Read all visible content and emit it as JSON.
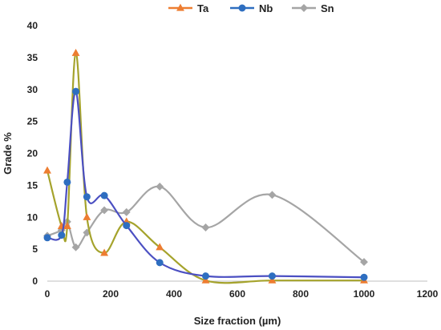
{
  "chart_data": {
    "type": "line",
    "xlabel": "Size fraction (µm)",
    "ylabel": "Grade %",
    "xlim": [
      0,
      1200
    ],
    "ylim": [
      0,
      40
    ],
    "x_ticks": [
      0,
      200,
      400,
      600,
      800,
      1000,
      1200
    ],
    "y_ticks": [
      0,
      5,
      10,
      15,
      20,
      25,
      30,
      35,
      40
    ],
    "grid": false,
    "legend_position": "top",
    "smooth": true,
    "series": [
      {
        "name": "Ta",
        "color": "#ED7D31",
        "line_color": "#A5A32C",
        "marker": "triangle",
        "points": [
          [
            0,
            17.3
          ],
          [
            45,
            8.6
          ],
          [
            63,
            8.6
          ],
          [
            90,
            35.7
          ],
          [
            125,
            10.0
          ],
          [
            180,
            4.4
          ],
          [
            250,
            9.3
          ],
          [
            355,
            5.3
          ],
          [
            500,
            0.1
          ],
          [
            710,
            0.1
          ],
          [
            1000,
            0.1
          ]
        ]
      },
      {
        "name": "Nb",
        "color": "#2E6EC0",
        "line_color": "#4B4FC2",
        "marker": "circle",
        "points": [
          [
            0,
            6.8
          ],
          [
            45,
            7.2
          ],
          [
            63,
            15.5
          ],
          [
            90,
            29.7
          ],
          [
            125,
            13.2
          ],
          [
            180,
            13.4
          ],
          [
            250,
            8.7
          ],
          [
            355,
            2.9
          ],
          [
            500,
            0.8
          ],
          [
            710,
            0.8
          ],
          [
            1000,
            0.6
          ]
        ]
      },
      {
        "name": "Sn",
        "color": "#A5A5A5",
        "line_color": "#A5A5A5",
        "marker": "diamond",
        "points": [
          [
            0,
            7.1
          ],
          [
            45,
            8.0
          ],
          [
            63,
            9.3
          ],
          [
            90,
            5.3
          ],
          [
            125,
            7.6
          ],
          [
            180,
            11.1
          ],
          [
            250,
            10.8
          ],
          [
            355,
            14.8
          ],
          [
            500,
            8.4
          ],
          [
            710,
            13.5
          ],
          [
            1000,
            3.0
          ]
        ]
      }
    ]
  }
}
